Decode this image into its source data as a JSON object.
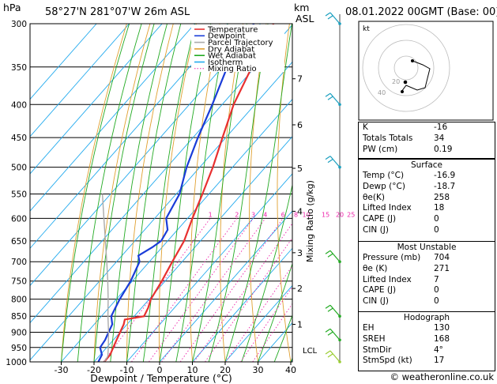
{
  "header": {
    "location": "58°27'N  281°07'W  26m  ASL",
    "datetime": "08.01.2022  00GMT  (Base: 00)",
    "pressure_unit": "hPa",
    "alt_unit_km": "km",
    "alt_unit_asl": "ASL"
  },
  "chart_data": {
    "type": "line",
    "chart_kind": "skew-T log-P diagram",
    "xlabel": "Dewpoint / Temperature (°C)",
    "ylabel": "Mixing Ratio (g/kg)",
    "pressure_levels": [
      300,
      350,
      400,
      450,
      500,
      550,
      600,
      650,
      700,
      750,
      800,
      850,
      900,
      950,
      1000
    ],
    "temperature_ticks": [
      -30,
      -20,
      -10,
      0,
      10,
      20,
      30,
      40
    ],
    "km_ticks": [
      {
        "label": "1",
        "p": 875
      },
      {
        "label": "2",
        "p": 770
      },
      {
        "label": "3",
        "p": 678
      },
      {
        "label": "4",
        "p": 585
      },
      {
        "label": "5",
        "p": 502
      },
      {
        "label": "6",
        "p": 430
      },
      {
        "label": "7",
        "p": 365
      }
    ],
    "lcl": {
      "label": "LCL",
      "p": 980
    },
    "mixing_ratio_labels": [
      "1",
      "2",
      "3",
      "4",
      "6",
      "8",
      "10",
      "15",
      "20",
      "25"
    ],
    "legend": [
      "Temperature",
      "Dewpoint",
      "Parcel Trajectory",
      "Dry Adiabat",
      "Wet Adiabat",
      "Isotherm",
      "Mixing Ratio"
    ],
    "legend_colors": [
      "#e83030",
      "#1a3cd8",
      "#aaaaaa",
      "#e0a030",
      "#22aa22",
      "#22aaee",
      "#ee22aa"
    ],
    "series": [
      {
        "name": "Temperature",
        "color": "#e83030",
        "points": [
          [
            1000,
            -16.9
          ],
          [
            975,
            -17
          ],
          [
            950,
            -18
          ],
          [
            925,
            -19
          ],
          [
            900,
            -20
          ],
          [
            875,
            -21
          ],
          [
            860,
            -22
          ],
          [
            850,
            -17
          ],
          [
            825,
            -18
          ],
          [
            800,
            -19.5
          ],
          [
            750,
            -21
          ],
          [
            700,
            -23
          ],
          [
            650,
            -25
          ],
          [
            600,
            -28.5
          ],
          [
            550,
            -32
          ],
          [
            500,
            -36
          ],
          [
            450,
            -41
          ],
          [
            400,
            -46.5
          ],
          [
            350,
            -51
          ],
          [
            320,
            -54
          ],
          [
            300,
            -56
          ]
        ]
      },
      {
        "name": "Dewpoint",
        "color": "#1a3cd8",
        "points": [
          [
            1000,
            -18.7
          ],
          [
            975,
            -19.5
          ],
          [
            950,
            -22
          ],
          [
            925,
            -22.5
          ],
          [
            900,
            -23.5
          ],
          [
            875,
            -24.5
          ],
          [
            850,
            -27
          ],
          [
            825,
            -28
          ],
          [
            800,
            -29
          ],
          [
            750,
            -30.5
          ],
          [
            700,
            -33
          ],
          [
            685,
            -35
          ],
          [
            665,
            -33
          ],
          [
            650,
            -32
          ],
          [
            625,
            -33
          ],
          [
            600,
            -36.5
          ],
          [
            550,
            -39
          ],
          [
            500,
            -44
          ],
          [
            450,
            -48.5
          ],
          [
            400,
            -53
          ],
          [
            350,
            -58.5
          ],
          [
            320,
            -61
          ],
          [
            300,
            -62
          ]
        ]
      },
      {
        "name": "Parcel Trajectory",
        "color": "#aaaaaa",
        "points": [
          [
            1000,
            -16.9
          ],
          [
            980,
            -17.3
          ],
          [
            950,
            -19.5
          ],
          [
            900,
            -23.5
          ],
          [
            850,
            -28
          ],
          [
            800,
            -32.5
          ],
          [
            750,
            -37.5
          ],
          [
            700,
            -43
          ],
          [
            650,
            -49
          ],
          [
            600,
            -55.5
          ],
          [
            550,
            -62.5
          ]
        ]
      }
    ]
  },
  "hodograph": {
    "label": "kt",
    "ring_labels": [
      "20",
      "40"
    ]
  },
  "indices": [
    {
      "k": "K",
      "v": "-16"
    },
    {
      "k": "Totals Totals",
      "v": "34"
    },
    {
      "k": "PW (cm)",
      "v": "0.19"
    }
  ],
  "surface": {
    "title": "Surface",
    "rows": [
      {
        "k": "Temp (°C)",
        "v": "-16.9"
      },
      {
        "k": "Dewp (°C)",
        "v": "-18.7"
      },
      {
        "k": "θe(K)",
        "v": "258"
      },
      {
        "k": "Lifted Index",
        "v": "18"
      },
      {
        "k": "CAPE (J)",
        "v": "0"
      },
      {
        "k": "CIN (J)",
        "v": "0"
      }
    ]
  },
  "unstable": {
    "title": "Most Unstable",
    "rows": [
      {
        "k": "Pressure (mb)",
        "v": "704"
      },
      {
        "k": "θe (K)",
        "v": "271"
      },
      {
        "k": "Lifted Index",
        "v": "7"
      },
      {
        "k": "CAPE (J)",
        "v": "0"
      },
      {
        "k": "CIN (J)",
        "v": "0"
      }
    ]
  },
  "hodo_table": {
    "title": "Hodograph",
    "rows": [
      {
        "k": "EH",
        "v": "130"
      },
      {
        "k": "SREH",
        "v": "168"
      },
      {
        "k": "StmDir",
        "v": "4°"
      },
      {
        "k": "StmSpd (kt)",
        "v": "17"
      }
    ]
  },
  "copyright": "© weatheronline.co.uk"
}
